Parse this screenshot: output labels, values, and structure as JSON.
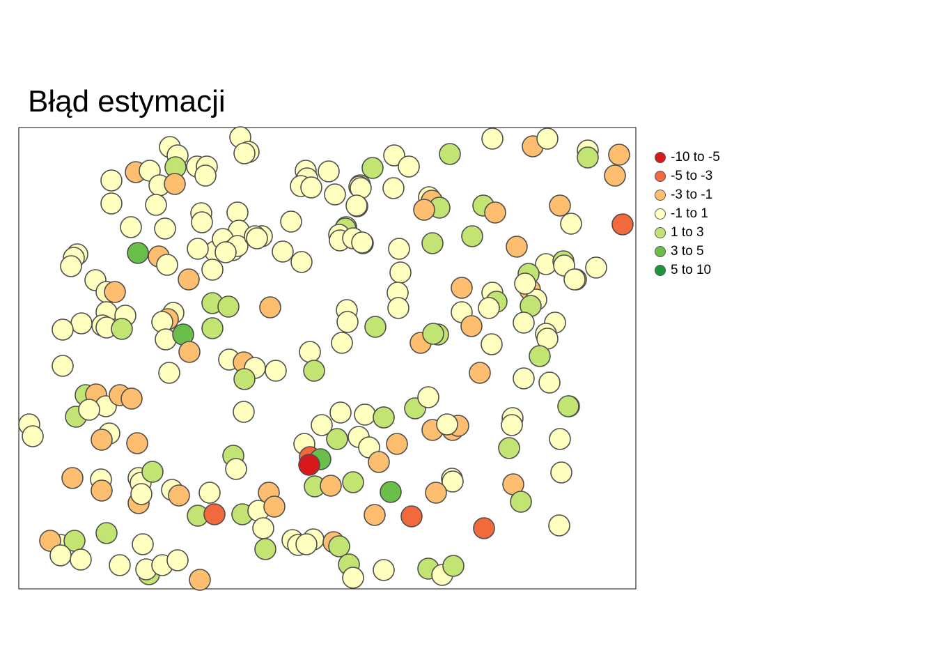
{
  "title": "Błąd estymacji",
  "legend": {
    "items": [
      {
        "label": "-10 to -5",
        "color": "#d7191c"
      },
      {
        "label": "-5 to -3",
        "color": "#f26a3b"
      },
      {
        "label": "-3 to -1",
        "color": "#fdbf6f"
      },
      {
        "label": "-1 to 1",
        "color": "#ffffbf"
      },
      {
        "label": "1 to 3",
        "color": "#c2e472"
      },
      {
        "label": "3 to 5",
        "color": "#6abf4b"
      },
      {
        "label": "5 to 10",
        "color": "#1a9641"
      }
    ]
  },
  "chart_data": {
    "type": "scatter",
    "title": "Błąd estymacji",
    "x_range": [
      0,
      886
    ],
    "y_range": [
      0,
      662
    ],
    "points": [
      [
        318,
        14,
        3
      ],
      [
        217,
        28,
        3
      ],
      [
        330,
        35,
        3
      ],
      [
        324,
        37,
        3
      ],
      [
        228,
        40,
        3
      ],
      [
        412,
        62,
        3
      ],
      [
        256,
        56,
        3
      ],
      [
        445,
        63,
        3
      ],
      [
        270,
        56,
        3
      ],
      [
        133,
        76,
        3
      ],
      [
        168,
        64,
        2
      ],
      [
        188,
        62,
        3
      ],
      [
        225,
        57,
        4
      ],
      [
        202,
        83,
        3
      ],
      [
        224,
        81,
        2
      ],
      [
        268,
        69,
        3
      ],
      [
        414,
        73,
        3
      ],
      [
        405,
        84,
        3
      ],
      [
        420,
        86,
        3
      ],
      [
        454,
        96,
        3
      ],
      [
        490,
        83,
        3
      ],
      [
        539,
        40,
        3
      ],
      [
        560,
        56,
        3
      ],
      [
        619,
        38,
        4
      ],
      [
        680,
        16,
        3
      ],
      [
        738,
        27,
        2
      ],
      [
        759,
        16,
        3
      ],
      [
        817,
        33,
        3
      ],
      [
        817,
        43,
        4
      ],
      [
        862,
        39,
        2
      ],
      [
        856,
        69,
        2
      ],
      [
        867,
        139,
        1
      ],
      [
        538,
        87,
        3
      ],
      [
        489,
        85,
        3
      ],
      [
        491,
        87,
        3
      ],
      [
        589,
        100,
        3
      ],
      [
        593,
        105,
        2
      ],
      [
        604,
        115,
        4
      ],
      [
        582,
        118,
        2
      ],
      [
        667,
        112,
        4
      ],
      [
        684,
        122,
        2
      ],
      [
        777,
        112,
        2
      ],
      [
        793,
        138,
        3
      ],
      [
        133,
        109,
        3
      ],
      [
        197,
        111,
        3
      ],
      [
        262,
        123,
        3
      ],
      [
        314,
        122,
        3
      ],
      [
        391,
        135,
        3
      ],
      [
        486,
        113,
        2
      ],
      [
        508,
        58,
        4
      ],
      [
        161,
        143,
        3
      ],
      [
        210,
        145,
        3
      ],
      [
        263,
        136,
        3
      ],
      [
        316,
        148,
        3
      ],
      [
        349,
        156,
        3
      ],
      [
        379,
        178,
        3
      ],
      [
        485,
        112,
        3
      ],
      [
        470,
        143,
        3
      ],
      [
        469,
        145,
        4
      ],
      [
        494,
        166,
        2
      ],
      [
        546,
        174,
        3
      ],
      [
        594,
        166,
        4
      ],
      [
        651,
        156,
        4
      ],
      [
        715,
        171,
        2
      ],
      [
        171,
        180,
        5
      ],
      [
        201,
        185,
        2
      ],
      [
        213,
        197,
        3
      ],
      [
        244,
        218,
        2
      ],
      [
        282,
        178,
        3
      ],
      [
        293,
        160,
        3
      ],
      [
        307,
        176,
        3
      ],
      [
        314,
        170,
        3
      ],
      [
        257,
        174,
        3
      ],
      [
        339,
        156,
        3
      ],
      [
        342,
        159,
        3
      ],
      [
        406,
        193,
        3
      ],
      [
        460,
        154,
        3
      ],
      [
        461,
        162,
        3
      ],
      [
        480,
        159,
        3
      ],
      [
        493,
        165,
        3
      ],
      [
        84,
        182,
        3
      ],
      [
        79,
        187,
        3
      ],
      [
        75,
        199,
        3
      ],
      [
        110,
        219,
        3
      ],
      [
        126,
        236,
        3
      ],
      [
        138,
        236,
        2
      ],
      [
        297,
        179,
        3
      ],
      [
        278,
        204,
        3
      ],
      [
        548,
        208,
        3
      ],
      [
        544,
        237,
        3
      ],
      [
        545,
        259,
        3
      ],
      [
        680,
        237,
        3
      ],
      [
        686,
        250,
        4
      ],
      [
        734,
        233,
        2
      ],
      [
        743,
        247,
        3
      ],
      [
        735,
        256,
        4
      ],
      [
        757,
        196,
        3
      ],
      [
        732,
        210,
        4
      ],
      [
        782,
        192,
        4
      ],
      [
        783,
        198,
        3
      ],
      [
        829,
        201,
        3
      ],
      [
        800,
        218,
        2
      ],
      [
        798,
        218,
        3
      ],
      [
        727,
        224,
        3
      ],
      [
        636,
        230,
        2
      ],
      [
        126,
        265,
        3
      ],
      [
        153,
        270,
        3
      ],
      [
        120,
        284,
        3
      ],
      [
        126,
        287,
        3
      ],
      [
        148,
        289,
        4
      ],
      [
        90,
        281,
        3
      ],
      [
        63,
        290,
        3
      ],
      [
        222,
        266,
        3
      ],
      [
        214,
        275,
        2
      ],
      [
        206,
        279,
        3
      ],
      [
        211,
        304,
        3
      ],
      [
        236,
        297,
        5
      ],
      [
        245,
        322,
        2
      ],
      [
        278,
        252,
        4
      ],
      [
        301,
        257,
        4
      ],
      [
        278,
        288,
        4
      ],
      [
        361,
        258,
        2
      ],
      [
        471,
        262,
        3
      ],
      [
        472,
        279,
        3
      ],
      [
        464,
        309,
        3
      ],
      [
        512,
        286,
        4
      ],
      [
        577,
        309,
        2
      ],
      [
        602,
        297,
        4
      ],
      [
        595,
        296,
        4
      ],
      [
        636,
        265,
        3
      ],
      [
        650,
        285,
        2
      ],
      [
        675,
        259,
        3
      ],
      [
        679,
        311,
        3
      ],
      [
        725,
        280,
        3
      ],
      [
        770,
        280,
        3
      ],
      [
        757,
        296,
        3
      ],
      [
        759,
        303,
        3
      ],
      [
        748,
        328,
        4
      ],
      [
        662,
        352,
        2
      ],
      [
        725,
        360,
        3
      ],
      [
        762,
        366,
        3
      ],
      [
        790,
        400,
        4
      ],
      [
        63,
        342,
        3
      ],
      [
        418,
        322,
        3
      ],
      [
        424,
        349,
        4
      ],
      [
        302,
        333,
        3
      ],
      [
        323,
        337,
        2
      ],
      [
        339,
        345,
        3
      ],
      [
        369,
        349,
        3
      ],
      [
        324,
        361,
        4
      ],
      [
        216,
        352,
        3
      ],
      [
        96,
        384,
        4
      ],
      [
        111,
        383,
        2
      ],
      [
        125,
        400,
        3
      ],
      [
        145,
        384,
        2
      ],
      [
        162,
        389,
        2
      ],
      [
        82,
        415,
        4
      ],
      [
        101,
        405,
        3
      ],
      [
        130,
        439,
        3
      ],
      [
        119,
        448,
        2
      ],
      [
        170,
        453,
        2
      ],
      [
        15,
        426,
        3
      ],
      [
        20,
        443,
        3
      ],
      [
        77,
        503,
        2
      ],
      [
        118,
        505,
        3
      ],
      [
        119,
        521,
        2
      ],
      [
        172,
        503,
        3
      ],
      [
        175,
        510,
        3
      ],
      [
        192,
        494,
        4
      ],
      [
        172,
        539,
        2
      ],
      [
        176,
        526,
        3
      ],
      [
        220,
        520,
        3
      ],
      [
        230,
        528,
        2
      ],
      [
        257,
        557,
        4
      ],
      [
        274,
        524,
        3
      ],
      [
        281,
        555,
        1
      ],
      [
        308,
        471,
        4
      ],
      [
        312,
        490,
        3
      ],
      [
        321,
        555,
        4
      ],
      [
        344,
        550,
        3
      ],
      [
        359,
        524,
        2
      ],
      [
        367,
        544,
        2
      ],
      [
        351,
        575,
        3
      ],
      [
        354,
        605,
        4
      ],
      [
        323,
        408,
        3
      ],
      [
        410,
        454,
        3
      ],
      [
        418,
        473,
        1
      ],
      [
        433,
        476,
        5
      ],
      [
        417,
        484,
        0
      ],
      [
        425,
        515,
        4
      ],
      [
        448,
        514,
        2
      ],
      [
        480,
        509,
        4
      ],
      [
        435,
        427,
        3
      ],
      [
        462,
        409,
        3
      ],
      [
        457,
        447,
        4
      ],
      [
        488,
        444,
        3
      ],
      [
        497,
        412,
        3
      ],
      [
        503,
        459,
        3
      ],
      [
        517,
        480,
        2
      ],
      [
        524,
        416,
        3
      ],
      [
        524,
        416,
        4
      ],
      [
        543,
        454,
        2
      ],
      [
        534,
        523,
        5
      ],
      [
        511,
        556,
        2
      ],
      [
        564,
        558,
        1
      ],
      [
        569,
        403,
        4
      ],
      [
        588,
        387,
        3
      ],
      [
        594,
        434,
        2
      ],
      [
        616,
        427,
        3
      ],
      [
        624,
        432,
        4
      ],
      [
        623,
        434,
        2
      ],
      [
        631,
        428,
        2
      ],
      [
        615,
        426,
        3
      ],
      [
        622,
        504,
        3
      ],
      [
        623,
        508,
        3
      ],
      [
        599,
        524,
        2
      ],
      [
        668,
        575,
        1
      ],
      [
        709,
        417,
        3
      ],
      [
        708,
        427,
        3
      ],
      [
        704,
        460,
        4
      ],
      [
        710,
        512,
        2
      ],
      [
        721,
        537,
        4
      ],
      [
        777,
        447,
        3
      ],
      [
        779,
        495,
        3
      ],
      [
        776,
        571,
        3
      ],
      [
        789,
        400,
        4
      ],
      [
        60,
        599,
        3
      ],
      [
        80,
        593,
        4
      ],
      [
        126,
        582,
        4
      ],
      [
        45,
        593,
        2
      ],
      [
        60,
        614,
        3
      ],
      [
        89,
        620,
        3
      ],
      [
        145,
        628,
        3
      ],
      [
        178,
        598,
        3
      ],
      [
        187,
        641,
        4
      ],
      [
        183,
        634,
        3
      ],
      [
        206,
        628,
        3
      ],
      [
        228,
        621,
        3
      ],
      [
        260,
        649,
        2
      ],
      [
        393,
        592,
        3
      ],
      [
        401,
        599,
        3
      ],
      [
        423,
        591,
        3
      ],
      [
        413,
        598,
        3
      ],
      [
        452,
        595,
        2
      ],
      [
        460,
        601,
        4
      ],
      [
        474,
        627,
        4
      ],
      [
        480,
        646,
        3
      ],
      [
        588,
        633,
        4
      ],
      [
        608,
        642,
        3
      ],
      [
        524,
        635,
        3
      ],
      [
        624,
        629,
        4
      ]
    ]
  }
}
